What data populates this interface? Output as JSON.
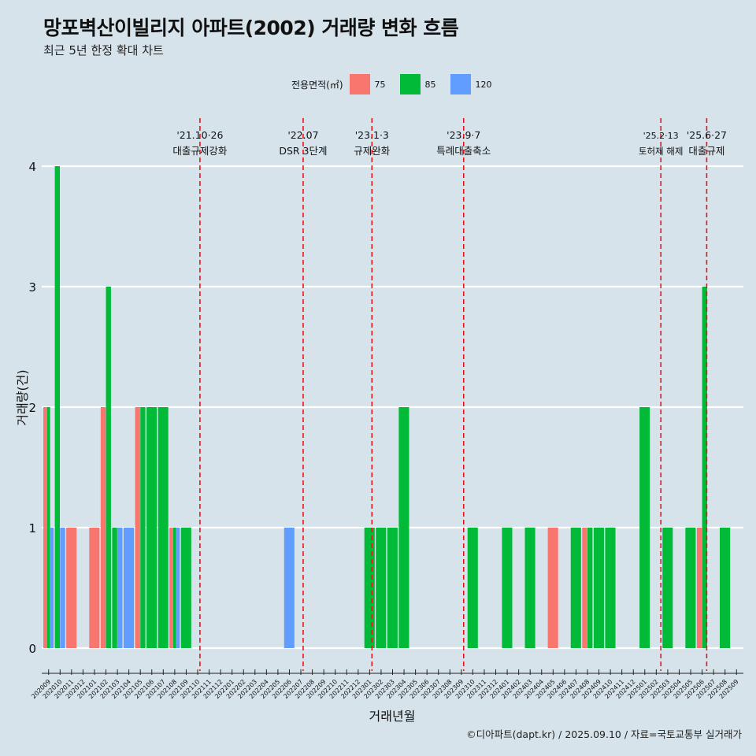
{
  "header": {
    "title": "망포벽산이빌리지 아파트(2002) 거래량 변화 흐름",
    "subtitle": "최근 5년 한정 확대 차트"
  },
  "legend": {
    "title": "전용면적(㎡)",
    "items": [
      {
        "label": "75",
        "color": "#f8766d"
      },
      {
        "label": "85",
        "color": "#00ba38"
      },
      {
        "label": "120",
        "color": "#619cff"
      }
    ]
  },
  "caption": "©디아파트(dapt.kr) / 2025.09.10 / 자료=국토교통부 실거래가",
  "chart_data": {
    "type": "bar",
    "title": "망포벽산이빌리지 아파트(2002) 거래량 변화 흐름",
    "xlabel": "거래년월",
    "ylabel": "거래량(건)",
    "ylim": [
      0,
      4
    ],
    "yticks": [
      0,
      1,
      2,
      3,
      4
    ],
    "categories": [
      "202009",
      "202010",
      "202011",
      "202012",
      "202101",
      "202102",
      "202103",
      "202104",
      "202105",
      "202106",
      "202107",
      "202108",
      "202109",
      "202110",
      "202111",
      "202112",
      "202201",
      "202202",
      "202203",
      "202204",
      "202205",
      "202206",
      "202207",
      "202208",
      "202209",
      "202210",
      "202211",
      "202212",
      "202301",
      "202302",
      "202303",
      "202304",
      "202305",
      "202306",
      "202307",
      "202308",
      "202309",
      "202310",
      "202311",
      "202312",
      "202401",
      "202402",
      "202403",
      "202404",
      "202405",
      "202406",
      "202407",
      "202408",
      "202409",
      "202410",
      "202411",
      "202412",
      "202501",
      "202502",
      "202503",
      "202504",
      "202505",
      "202506",
      "202507",
      "202508",
      "202509"
    ],
    "series": [
      {
        "name": "75",
        "color": "#f8766d",
        "values": [
          2,
          0,
          1,
          0,
          1,
          2,
          0,
          0,
          2,
          0,
          0,
          1,
          0,
          0,
          0,
          0,
          0,
          0,
          0,
          0,
          0,
          0,
          0,
          0,
          0,
          0,
          0,
          0,
          0,
          0,
          0,
          0,
          0,
          0,
          0,
          0,
          0,
          0,
          0,
          0,
          0,
          0,
          0,
          0,
          1,
          0,
          0,
          1,
          0,
          0,
          0,
          0,
          0,
          0,
          0,
          0,
          0,
          1,
          0,
          0,
          0
        ]
      },
      {
        "name": "85",
        "color": "#00ba38",
        "values": [
          2,
          4,
          0,
          0,
          0,
          3,
          1,
          0,
          2,
          2,
          2,
          1,
          1,
          0,
          0,
          0,
          0,
          0,
          0,
          0,
          0,
          0,
          0,
          0,
          0,
          0,
          0,
          0,
          1,
          1,
          1,
          2,
          0,
          0,
          0,
          0,
          0,
          1,
          0,
          0,
          1,
          0,
          1,
          0,
          0,
          0,
          1,
          1,
          1,
          1,
          0,
          0,
          2,
          0,
          1,
          0,
          1,
          3,
          0,
          1,
          0
        ]
      },
      {
        "name": "120",
        "color": "#619cff",
        "values": [
          1,
          1,
          0,
          0,
          0,
          0,
          1,
          1,
          0,
          0,
          0,
          1,
          0,
          0,
          0,
          0,
          0,
          0,
          0,
          0,
          0,
          1,
          0,
          0,
          0,
          0,
          0,
          0,
          0,
          0,
          0,
          0,
          0,
          0,
          0,
          0,
          0,
          0,
          0,
          0,
          0,
          0,
          0,
          0,
          0,
          0,
          0,
          0,
          0,
          0,
          0,
          0,
          0,
          0,
          0,
          0,
          0,
          0,
          0,
          0,
          0
        ]
      }
    ],
    "events": [
      {
        "date": "'21.10·26",
        "label": "대출규제강화",
        "pos": 13.2
      },
      {
        "date": "'22.07",
        "label": "DSR 3단계",
        "pos": 22.2
      },
      {
        "date": "'23.1·3",
        "label": "규제완화",
        "pos": 28.2
      },
      {
        "date": "'23.9·7",
        "label": "특례대출축소",
        "pos": 36.2
      },
      {
        "date": "'25.2·13",
        "label": "토허제 해제",
        "pos": 53.4
      },
      {
        "date": "'25.6·27",
        "label": "대출규제",
        "pos": 57.4
      }
    ]
  }
}
